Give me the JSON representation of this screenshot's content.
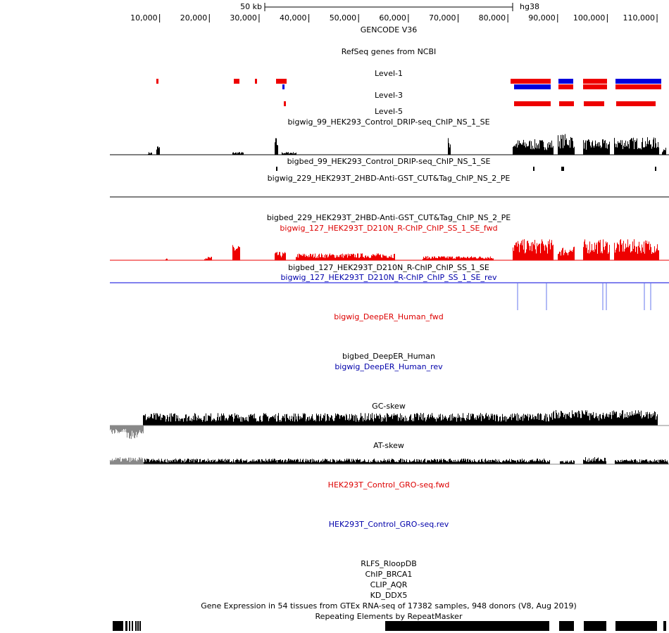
{
  "browser": {
    "scale_bar": {
      "label": "50 kb",
      "assembly": "hg38"
    },
    "ruler": {
      "xlim": [
        0,
        112400
      ],
      "ticks": [
        {
          "value": 10000,
          "label": "10,000"
        },
        {
          "value": 20000,
          "label": "20,000"
        },
        {
          "value": 30000,
          "label": "30,000"
        },
        {
          "value": 40000,
          "label": "40,000"
        },
        {
          "value": 50000,
          "label": "50,000"
        },
        {
          "value": 60000,
          "label": "60,000"
        },
        {
          "value": 70000,
          "label": "70,000"
        },
        {
          "value": 80000,
          "label": "80,000"
        },
        {
          "value": 90000,
          "label": "90,000"
        },
        {
          "value": 100000,
          "label": "100,000"
        },
        {
          "value": 110000,
          "label": "110,000"
        }
      ]
    },
    "tracks": [
      {
        "label": "GENCODE V36",
        "color": "#000000"
      },
      {
        "label": "RefSeq genes from NCBI",
        "color": "#000000"
      },
      {
        "label": "Level-1",
        "color": "#000000"
      },
      {
        "label": "Level-3",
        "color": "#000000"
      },
      {
        "label": "Level-5",
        "color": "#000000"
      },
      {
        "label": "bigwig_99_HEK293_Control_DRIP-seq_ChIP_NS_1_SE",
        "color": "#000000"
      },
      {
        "label": "bigbed_99_HEK293_Control_DRIP-seq_ChIP_NS_1_SE",
        "color": "#000000"
      },
      {
        "label": "bigwig_229_HEK293T_2HBD-Anti-GST_CUT&Tag_ChIP_NS_2_PE",
        "color": "#000000"
      },
      {
        "label": "bigbed_229_HEK293T_2HBD-Anti-GST_CUT&Tag_ChIP_NS_2_PE",
        "color": "#000000"
      },
      {
        "label": "bigwig_127_HEK293T_D210N_R-ChIP_ChIP_SS_1_SE_fwd",
        "color": "#dd0000"
      },
      {
        "label": "bigbed_127_HEK293T_D210N_R-ChIP_ChIP_SS_1_SE",
        "color": "#000000"
      },
      {
        "label": "bigwig_127_HEK293T_D210N_R-ChIP_ChIP_SS_1_SE_rev",
        "color": "#0000aa"
      },
      {
        "label": "bigwig_DeepER_Human_fwd",
        "color": "#dd0000"
      },
      {
        "label": "bigbed_DeepER_Human",
        "color": "#000000"
      },
      {
        "label": "bigwig_DeepER_Human_rev",
        "color": "#0000aa"
      },
      {
        "label": "GC-skew",
        "color": "#000000"
      },
      {
        "label": "AT-skew",
        "color": "#000000"
      },
      {
        "label": "HEK293T_Control_GRO-seq.fwd",
        "color": "#dd0000"
      },
      {
        "label": "HEK293T_Control_GRO-seq.rev",
        "color": "#0000aa"
      },
      {
        "label": "RLFS_RloopDB",
        "color": "#000000"
      },
      {
        "label": "ChIP_BRCA1",
        "color": "#000000"
      },
      {
        "label": "CLIP_AQR",
        "color": "#000000"
      },
      {
        "label": "KD_DDX5",
        "color": "#000000"
      },
      {
        "label": "Gene Expression in 54 tissues from GTEx RNA-seq of 17382 samples, 948 donors (V8, Aug 2019)",
        "color": "#000000"
      },
      {
        "label": "Repeating Elements by RepeatMasker",
        "color": "#000000"
      }
    ]
  }
}
